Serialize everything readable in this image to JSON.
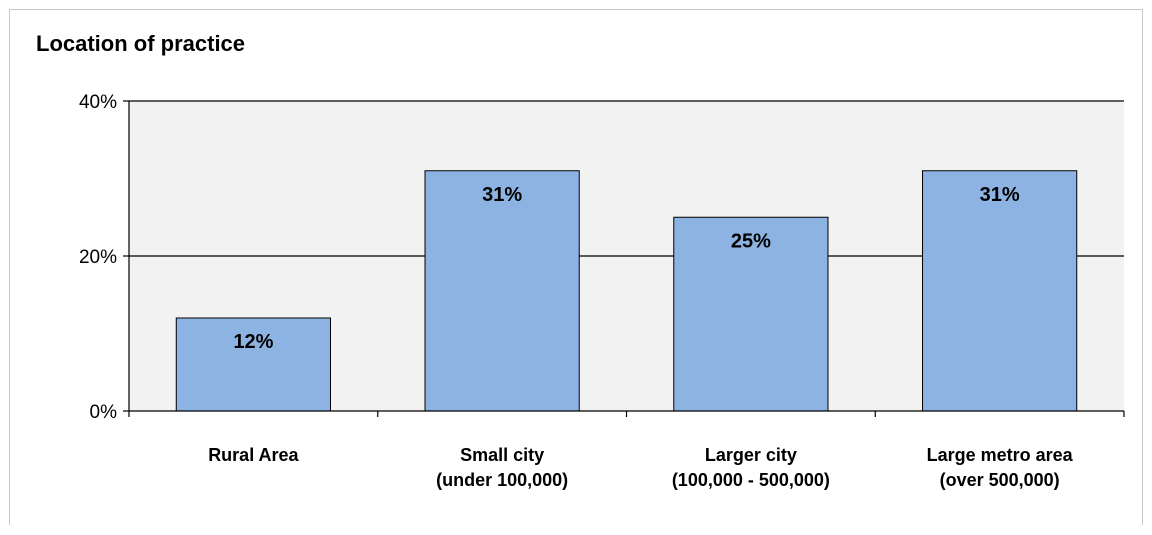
{
  "chart_data": {
    "type": "bar",
    "title": "Location of practice",
    "categories": [
      [
        "Rural Area"
      ],
      [
        "Small city",
        "(under 100,000)"
      ],
      [
        "Larger city",
        "(100,000  - 500,000)"
      ],
      [
        "Large metro area",
        "(over 500,000)"
      ]
    ],
    "values": [
      12,
      31,
      25,
      31
    ],
    "data_labels": [
      "12%",
      "31%",
      "25%",
      "31%"
    ],
    "ylim": [
      0,
      40
    ],
    "yticks": [
      0,
      20,
      40
    ],
    "ytick_labels": [
      "0%",
      "20%",
      "40%"
    ],
    "xlabel": "",
    "ylabel": "",
    "grid": true,
    "legend": "none",
    "colors": {
      "bar_fill": "#8db3e2",
      "bar_stroke": "#000000",
      "plot_background": "#f2f2f2",
      "gridline": "#000000"
    }
  }
}
